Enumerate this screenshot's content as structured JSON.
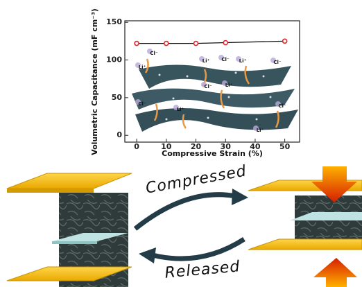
{
  "chart_data": {
    "type": "line",
    "x_label": "Compressive Strain (%)",
    "y_label": "Volumetric Capacitance (mF cm⁻³)",
    "x": [
      0,
      10,
      20,
      30,
      50
    ],
    "series": [
      {
        "color": "#e3242b",
        "values": [
          122,
          122,
          122,
          123,
          125
        ]
      }
    ],
    "xlim": [
      -4,
      55
    ],
    "xticks": [
      0,
      10,
      20,
      30,
      40,
      50
    ],
    "ylim": [
      -9,
      152
    ],
    "yticks": [
      0,
      50,
      100,
      150
    ],
    "annotations": [
      "Cl⁻",
      "Li⁺",
      "Li⁺",
      "Cl⁻",
      "Li⁺",
      "Cl⁻",
      "Cl⁻",
      "Li⁺",
      "Cl⁻",
      "Li⁺",
      "Cl⁻",
      "Li⁺"
    ]
  },
  "diagram": {
    "compress_label": "Compressed",
    "release_label": "Released"
  }
}
